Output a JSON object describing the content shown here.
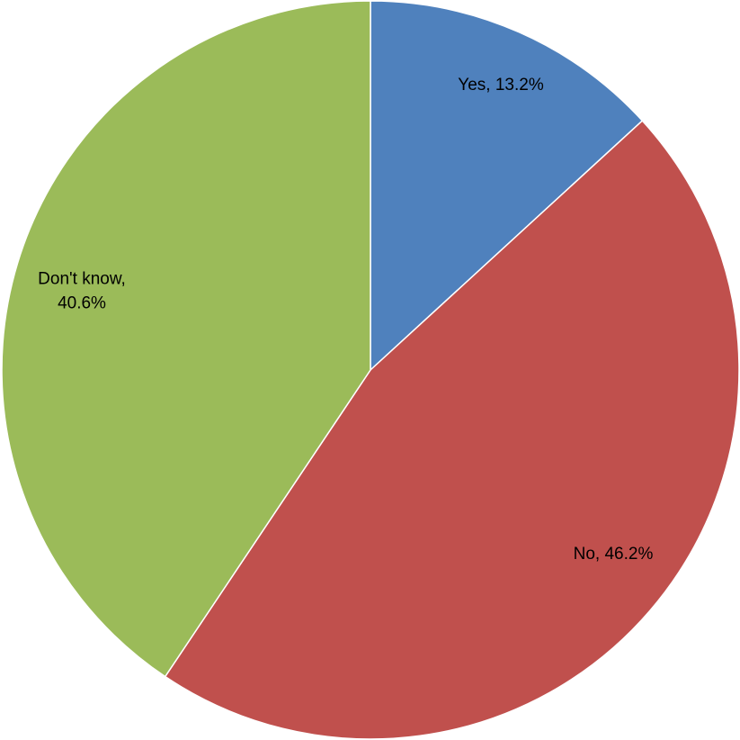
{
  "chart_data": {
    "type": "pie",
    "title": "",
    "start_angle_deg": 0,
    "direction": "clockwise",
    "legend": "none",
    "slices": [
      {
        "label_lines": [
          "Yes, 13.2%"
        ],
        "category": "Yes",
        "value": 13.2,
        "color": "#4f81bd"
      },
      {
        "label_lines": [
          "No, 46.2%"
        ],
        "category": "No",
        "value": 46.2,
        "color": "#c0504d"
      },
      {
        "label_lines": [
          "Don't know,",
          "40.6%"
        ],
        "category": "Don't know",
        "value": 40.6,
        "color": "#9bbb59"
      }
    ]
  }
}
